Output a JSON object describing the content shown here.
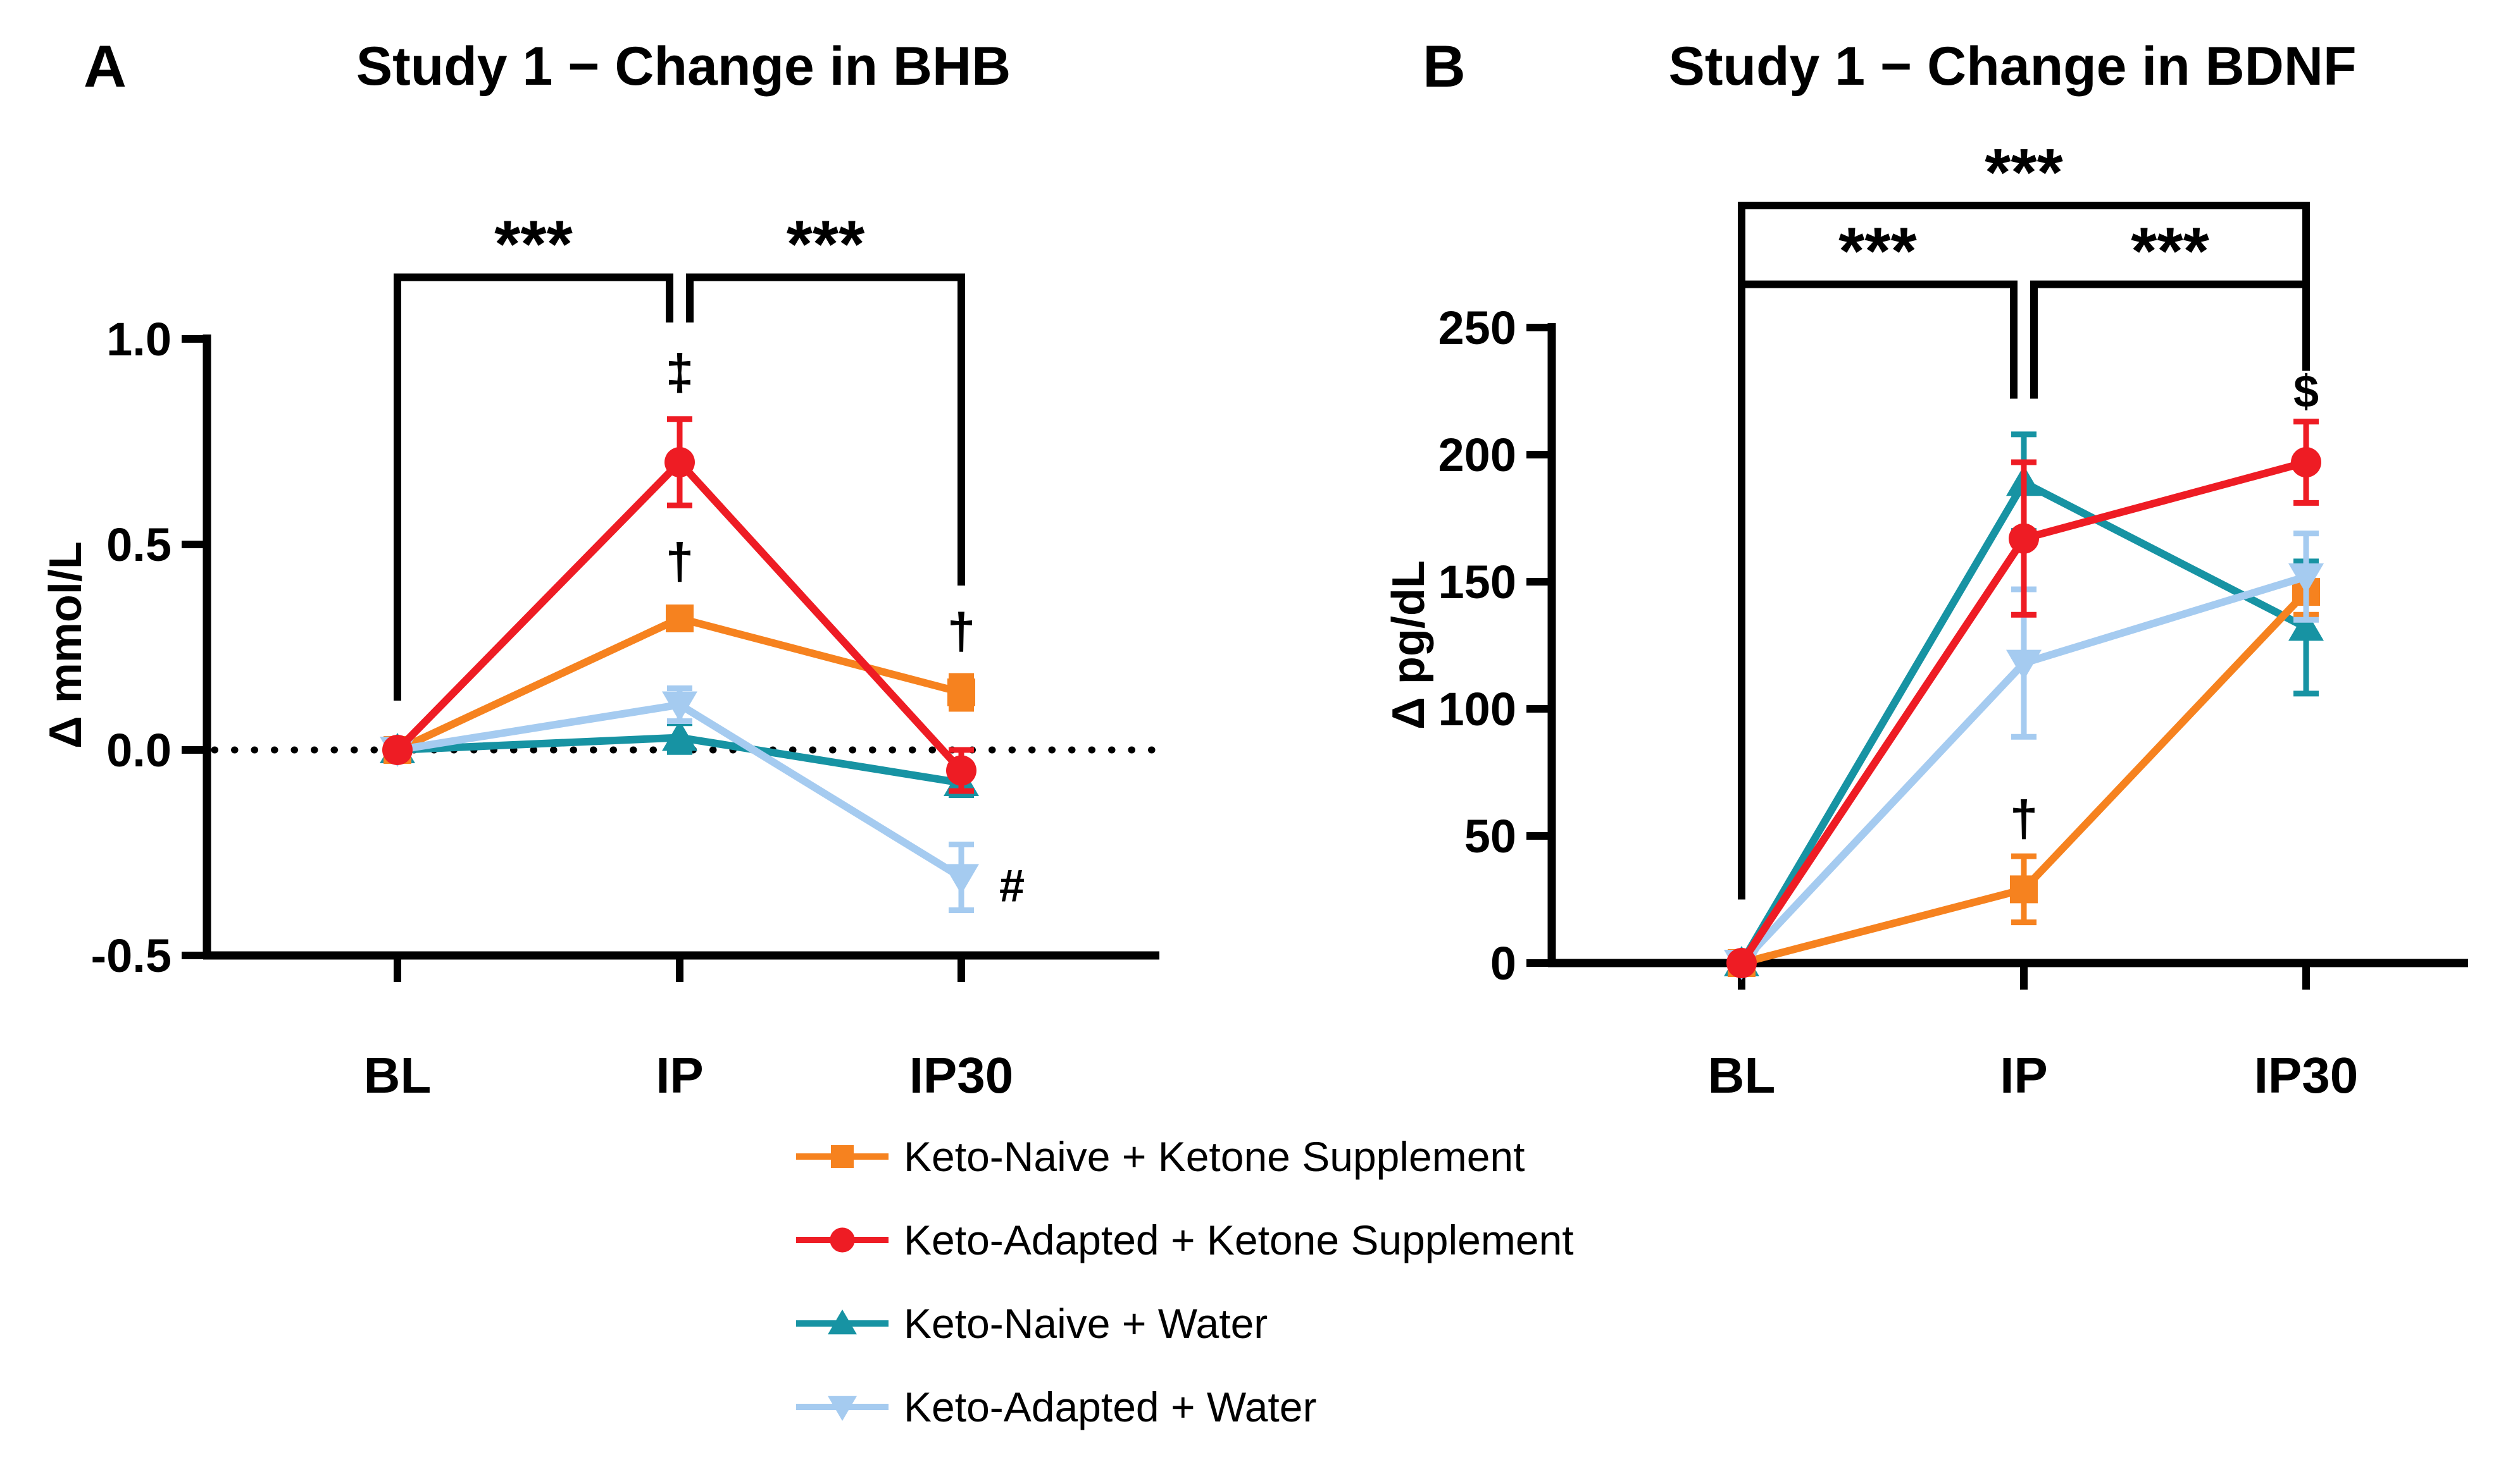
{
  "figure": {
    "panels": [
      {
        "letter": "A"
      },
      {
        "letter": "B"
      }
    ]
  },
  "legend": {
    "items": [
      {
        "label": "Keto-Naive + Ketone Supplement",
        "marker": "square",
        "color": "#F6821F"
      },
      {
        "label": "Keto-Adapted + Ketone Supplement",
        "marker": "circle",
        "color": "#EE1C24"
      },
      {
        "label": "Keto-Naive + Water",
        "marker": "triangle-up",
        "color": "#1793A3"
      },
      {
        "label": "Keto-Adapted + Water",
        "marker": "triangle-down",
        "color": "#A5CBF0"
      }
    ]
  },
  "chart_data": [
    {
      "type": "line",
      "panel": "A",
      "title": "Study 1 − Change in BHB",
      "ylabel": "Δ mmol/L",
      "xlabel": "",
      "categories": [
        "BL",
        "IP",
        "IP30"
      ],
      "ylim": [
        -0.5,
        1.0
      ],
      "yticks": [
        {
          "value": 1.0,
          "label": "1.0"
        },
        {
          "value": 0.5,
          "label": "0.5"
        },
        {
          "value": 0.0,
          "label": "0.0"
        },
        {
          "value": -0.5,
          "label": "-0.5"
        }
      ],
      "grid": false,
      "legend_position": "bottom",
      "reference_line": {
        "value": 0,
        "style": "dotted"
      },
      "series": [
        {
          "name": "Keto-Naive + Ketone Supplement",
          "marker": "square",
          "color": "#F6821F",
          "values": [
            0,
            0.32,
            0.14
          ],
          "errors": [
            0.01,
            0.02,
            0.04
          ]
        },
        {
          "name": "Keto-Adapted + Ketone Supplement",
          "marker": "circle",
          "color": "#EE1C24",
          "values": [
            0,
            0.7,
            -0.05
          ],
          "errors": [
            0.01,
            0.105,
            0.05
          ]
        },
        {
          "name": "Keto-Naive + Water",
          "marker": "triangle-up",
          "color": "#1793A3",
          "values": [
            0,
            0.03,
            -0.08
          ],
          "errors": [
            0.01,
            0.035,
            0.03
          ]
        },
        {
          "name": "Keto-Adapted + Water",
          "marker": "triangle-down",
          "color": "#A5CBF0",
          "values": [
            0,
            0.11,
            -0.31
          ],
          "errors": [
            0.01,
            0.04,
            0.08
          ]
        }
      ],
      "draw_order": [
        2,
        0,
        3,
        1
      ],
      "annotations": [
        {
          "text": "‡",
          "category": "IP",
          "value": 0.92,
          "dx": 0
        },
        {
          "text": "†",
          "category": "IP",
          "value": 0.46,
          "dx": 0
        },
        {
          "text": "†",
          "category": "IP30",
          "value": 0.29,
          "dx": 0
        },
        {
          "text": "#",
          "category": "IP30",
          "value": -0.33,
          "dx": 80
        }
      ],
      "sig_brackets": [
        {
          "from": "BL",
          "to": "IP",
          "label": "***",
          "y": 1.15,
          "from_drop_to": 0.12,
          "to_drop_to": 1.04
        },
        {
          "from": "IP",
          "to": "IP30",
          "label": "***",
          "y": 1.15,
          "from_drop_to": 1.04,
          "to_drop_to": 0.4
        }
      ]
    },
    {
      "type": "line",
      "panel": "B",
      "title": "Study 1 − Change in BDNF",
      "ylabel": "Δ pg/dL",
      "xlabel": "",
      "categories": [
        "BL",
        "IP",
        "IP30"
      ],
      "ylim": [
        0,
        250
      ],
      "yticks": [
        {
          "value": 250,
          "label": "250"
        },
        {
          "value": 200,
          "label": "200"
        },
        {
          "value": 150,
          "label": "150"
        },
        {
          "value": 100,
          "label": "100"
        },
        {
          "value": 50,
          "label": "50"
        },
        {
          "value": 0,
          "label": "0"
        }
      ],
      "grid": false,
      "legend_position": "bottom",
      "reference_line": null,
      "series": [
        {
          "name": "Keto-Naive + Ketone Supplement",
          "marker": "square",
          "color": "#F6821F",
          "values": [
            0,
            29,
            146
          ],
          "errors": [
            1,
            13,
            9
          ]
        },
        {
          "name": "Keto-Adapted + Ketone Supplement",
          "marker": "circle",
          "color": "#EE1C24",
          "values": [
            0,
            167,
            197
          ],
          "errors": [
            1,
            30,
            16
          ]
        },
        {
          "name": "Keto-Naive + Water",
          "marker": "triangle-up",
          "color": "#1793A3",
          "values": [
            0,
            189,
            132
          ],
          "errors": [
            1,
            19,
            26
          ]
        },
        {
          "name": "Keto-Adapted + Water",
          "marker": "triangle-down",
          "color": "#A5CBF0",
          "values": [
            0,
            118,
            152
          ],
          "errors": [
            1,
            29,
            17
          ]
        }
      ],
      "draw_order": [
        2,
        0,
        3,
        1
      ],
      "annotations": [
        {
          "text": "†",
          "category": "IP",
          "value": 57,
          "dx": 0
        },
        {
          "text": "$",
          "category": "IP30",
          "value": 225,
          "dx": 0
        }
      ],
      "sig_brackets": [
        {
          "from": "BL",
          "to": "IP30",
          "label": "***",
          "y": 298,
          "from_drop_to": 25,
          "to_drop_to": 233
        },
        {
          "from": "BL",
          "to": "IP",
          "label": "***",
          "y": 267,
          "from_drop_to": 25,
          "to_drop_to": 222
        },
        {
          "from": "IP",
          "to": "IP30",
          "label": "***",
          "y": 267,
          "from_drop_to": 222,
          "to_drop_to": 233
        }
      ]
    }
  ]
}
